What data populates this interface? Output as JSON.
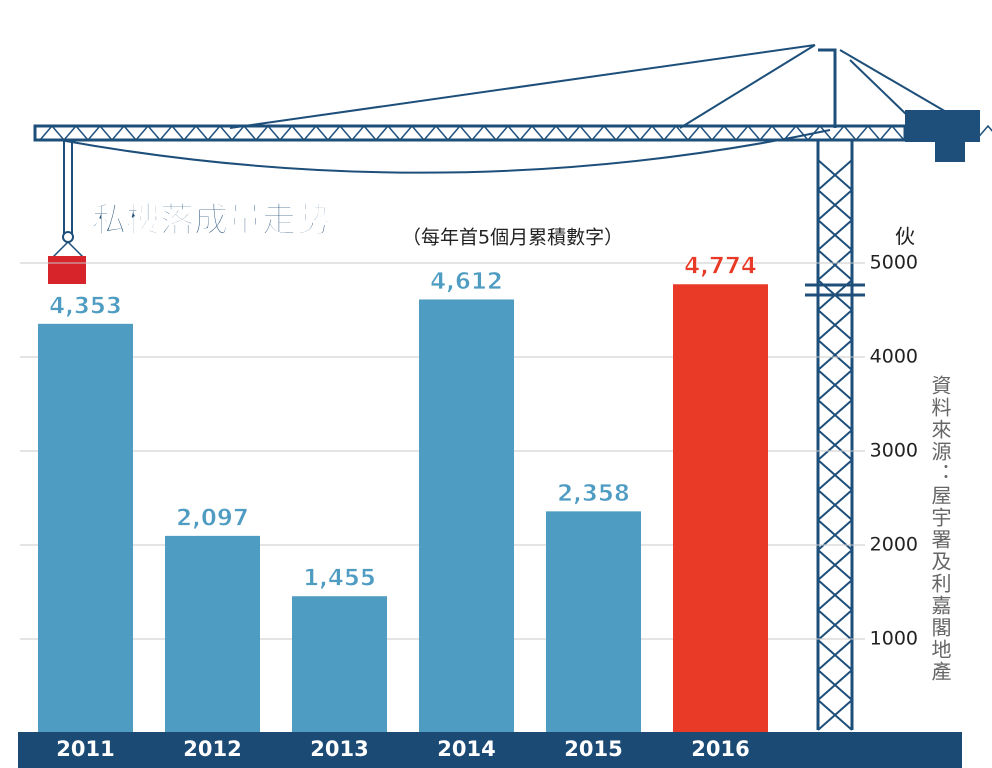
{
  "chart_data": {
    "type": "bar",
    "title": "私樓落成量走勢",
    "subtitle": "（每年首5個月累積數字）",
    "y_axis_label": "伙",
    "source": "資料來源：屋宇署及利嘉閣地產",
    "categories": [
      "2011",
      "2012",
      "2013",
      "2014",
      "2015",
      "2016"
    ],
    "values": [
      4353,
      2097,
      1455,
      4612,
      2358,
      4774
    ],
    "value_labels": [
      "4,353",
      "2,097",
      "1,455",
      "4,612",
      "2,358",
      "4,774"
    ],
    "colors": [
      "#4f9cc2",
      "#4f9cc2",
      "#4f9cc2",
      "#4f9cc2",
      "#4f9cc2",
      "#e83a26"
    ],
    "ylim": [
      0,
      5000
    ],
    "yticks": [
      1000,
      2000,
      3000,
      4000,
      5000
    ],
    "grid": true
  }
}
